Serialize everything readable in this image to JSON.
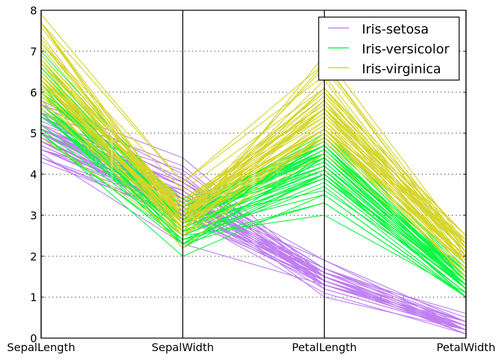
{
  "chart_data": {
    "type": "parallel_coordinates",
    "title": "",
    "xlabel": "",
    "ylabel": "",
    "axes": [
      "SepalLength",
      "SepalWidth",
      "PetalLength",
      "PetalWidth"
    ],
    "ylim": [
      0,
      8
    ],
    "yticks": [
      "0",
      "1",
      "2",
      "3",
      "4",
      "5",
      "6",
      "7",
      "8"
    ],
    "grid": true,
    "legend": {
      "position": "top-right",
      "entries": [
        "Iris-setosa",
        "Iris-versicolor",
        "Iris-virginica"
      ]
    },
    "colors": {
      "Iris-setosa": "#bf7ff0",
      "Iris-versicolor": "#0ef542",
      "Iris-virginica": "#d4d52a"
    },
    "series": [
      {
        "name": "Iris-setosa",
        "rows": [
          [
            5.1,
            3.5,
            1.4,
            0.2
          ],
          [
            4.9,
            3.0,
            1.4,
            0.2
          ],
          [
            4.7,
            3.2,
            1.3,
            0.2
          ],
          [
            4.6,
            3.1,
            1.5,
            0.2
          ],
          [
            5.0,
            3.6,
            1.4,
            0.2
          ],
          [
            5.4,
            3.9,
            1.7,
            0.4
          ],
          [
            4.6,
            3.4,
            1.4,
            0.3
          ],
          [
            5.0,
            3.4,
            1.5,
            0.2
          ],
          [
            4.4,
            2.9,
            1.4,
            0.2
          ],
          [
            4.9,
            3.1,
            1.5,
            0.1
          ],
          [
            5.4,
            3.7,
            1.5,
            0.2
          ],
          [
            4.8,
            3.4,
            1.6,
            0.2
          ],
          [
            4.8,
            3.0,
            1.4,
            0.1
          ],
          [
            4.3,
            3.0,
            1.1,
            0.1
          ],
          [
            5.8,
            4.0,
            1.2,
            0.2
          ],
          [
            5.7,
            4.4,
            1.5,
            0.4
          ],
          [
            5.4,
            3.9,
            1.3,
            0.4
          ],
          [
            5.1,
            3.5,
            1.4,
            0.3
          ],
          [
            5.7,
            3.8,
            1.7,
            0.3
          ],
          [
            5.1,
            3.8,
            1.5,
            0.3
          ],
          [
            5.4,
            3.4,
            1.7,
            0.2
          ],
          [
            5.1,
            3.7,
            1.5,
            0.4
          ],
          [
            4.6,
            3.6,
            1.0,
            0.2
          ],
          [
            5.1,
            3.3,
            1.7,
            0.5
          ],
          [
            4.8,
            3.4,
            1.9,
            0.2
          ],
          [
            5.0,
            3.0,
            1.6,
            0.2
          ],
          [
            5.0,
            3.4,
            1.6,
            0.4
          ],
          [
            5.2,
            3.5,
            1.5,
            0.2
          ],
          [
            5.2,
            3.4,
            1.4,
            0.2
          ],
          [
            4.7,
            3.2,
            1.6,
            0.2
          ],
          [
            4.8,
            3.1,
            1.6,
            0.2
          ],
          [
            5.4,
            3.4,
            1.5,
            0.4
          ],
          [
            5.2,
            4.1,
            1.5,
            0.1
          ],
          [
            5.5,
            4.2,
            1.4,
            0.2
          ],
          [
            4.9,
            3.1,
            1.5,
            0.1
          ],
          [
            5.0,
            3.2,
            1.2,
            0.2
          ],
          [
            5.5,
            3.5,
            1.3,
            0.2
          ],
          [
            4.9,
            3.1,
            1.5,
            0.1
          ],
          [
            4.4,
            3.0,
            1.3,
            0.2
          ],
          [
            5.1,
            3.4,
            1.5,
            0.2
          ],
          [
            5.0,
            3.5,
            1.3,
            0.3
          ],
          [
            4.5,
            2.3,
            1.3,
            0.3
          ],
          [
            4.4,
            3.2,
            1.3,
            0.2
          ],
          [
            5.0,
            3.5,
            1.6,
            0.6
          ],
          [
            5.1,
            3.8,
            1.9,
            0.4
          ],
          [
            4.8,
            3.0,
            1.4,
            0.3
          ],
          [
            5.1,
            3.8,
            1.6,
            0.2
          ],
          [
            4.6,
            3.2,
            1.4,
            0.2
          ],
          [
            5.3,
            3.7,
            1.5,
            0.2
          ],
          [
            5.0,
            3.3,
            1.4,
            0.2
          ]
        ]
      },
      {
        "name": "Iris-versicolor",
        "rows": [
          [
            7.0,
            3.2,
            4.7,
            1.4
          ],
          [
            6.4,
            3.2,
            4.5,
            1.5
          ],
          [
            6.9,
            3.1,
            4.9,
            1.5
          ],
          [
            5.5,
            2.3,
            4.0,
            1.3
          ],
          [
            6.5,
            2.8,
            4.6,
            1.5
          ],
          [
            5.7,
            2.8,
            4.5,
            1.3
          ],
          [
            6.3,
            3.3,
            4.7,
            1.6
          ],
          [
            4.9,
            2.4,
            3.3,
            1.0
          ],
          [
            6.6,
            2.9,
            4.6,
            1.3
          ],
          [
            5.2,
            2.7,
            3.9,
            1.4
          ],
          [
            5.0,
            2.0,
            3.5,
            1.0
          ],
          [
            5.9,
            3.0,
            4.2,
            1.5
          ],
          [
            6.0,
            2.2,
            4.0,
            1.0
          ],
          [
            6.1,
            2.9,
            4.7,
            1.4
          ],
          [
            5.6,
            2.9,
            3.6,
            1.3
          ],
          [
            6.7,
            3.1,
            4.4,
            1.4
          ],
          [
            5.6,
            3.0,
            4.5,
            1.5
          ],
          [
            5.8,
            2.7,
            4.1,
            1.0
          ],
          [
            6.2,
            2.2,
            4.5,
            1.5
          ],
          [
            5.6,
            2.5,
            3.9,
            1.1
          ],
          [
            5.9,
            3.2,
            4.8,
            1.8
          ],
          [
            6.1,
            2.8,
            4.0,
            1.3
          ],
          [
            6.3,
            2.5,
            4.9,
            1.5
          ],
          [
            6.1,
            2.8,
            4.7,
            1.2
          ],
          [
            6.4,
            2.9,
            4.3,
            1.3
          ],
          [
            6.6,
            3.0,
            4.4,
            1.4
          ],
          [
            6.8,
            2.8,
            4.8,
            1.4
          ],
          [
            6.7,
            3.0,
            5.0,
            1.7
          ],
          [
            6.0,
            2.9,
            4.5,
            1.5
          ],
          [
            5.7,
            2.6,
            3.5,
            1.0
          ],
          [
            5.5,
            2.4,
            3.8,
            1.1
          ],
          [
            5.5,
            2.4,
            3.7,
            1.0
          ],
          [
            5.8,
            2.7,
            3.9,
            1.2
          ],
          [
            6.0,
            2.7,
            5.1,
            1.6
          ],
          [
            5.4,
            3.0,
            4.5,
            1.5
          ],
          [
            6.0,
            3.4,
            4.5,
            1.6
          ],
          [
            6.7,
            3.1,
            4.7,
            1.5
          ],
          [
            6.3,
            2.3,
            4.4,
            1.3
          ],
          [
            5.6,
            3.0,
            4.1,
            1.3
          ],
          [
            5.5,
            2.5,
            4.0,
            1.3
          ],
          [
            5.5,
            2.6,
            4.4,
            1.2
          ],
          [
            6.1,
            3.0,
            4.6,
            1.4
          ],
          [
            5.8,
            2.6,
            4.0,
            1.2
          ],
          [
            5.0,
            2.3,
            3.3,
            1.0
          ],
          [
            5.6,
            2.7,
            4.2,
            1.3
          ],
          [
            5.7,
            3.0,
            4.2,
            1.2
          ],
          [
            5.7,
            2.9,
            4.2,
            1.3
          ],
          [
            6.2,
            2.9,
            4.3,
            1.3
          ],
          [
            5.1,
            2.5,
            3.0,
            1.1
          ],
          [
            5.7,
            2.8,
            4.1,
            1.3
          ]
        ]
      },
      {
        "name": "Iris-virginica",
        "rows": [
          [
            6.3,
            3.3,
            6.0,
            2.5
          ],
          [
            5.8,
            2.7,
            5.1,
            1.9
          ],
          [
            7.1,
            3.0,
            5.9,
            2.1
          ],
          [
            6.3,
            2.9,
            5.6,
            1.8
          ],
          [
            6.5,
            3.0,
            5.8,
            2.2
          ],
          [
            7.6,
            3.0,
            6.6,
            2.1
          ],
          [
            4.9,
            2.5,
            4.5,
            1.7
          ],
          [
            7.3,
            2.9,
            6.3,
            1.8
          ],
          [
            6.7,
            2.5,
            5.8,
            1.8
          ],
          [
            7.2,
            3.6,
            6.1,
            2.5
          ],
          [
            6.5,
            3.2,
            5.1,
            2.0
          ],
          [
            6.4,
            2.7,
            5.3,
            1.9
          ],
          [
            6.8,
            3.0,
            5.5,
            2.1
          ],
          [
            5.7,
            2.5,
            5.0,
            2.0
          ],
          [
            5.8,
            2.8,
            5.1,
            2.4
          ],
          [
            6.4,
            3.2,
            5.3,
            2.3
          ],
          [
            6.5,
            3.0,
            5.5,
            1.8
          ],
          [
            7.7,
            3.8,
            6.7,
            2.2
          ],
          [
            7.7,
            2.6,
            6.9,
            2.3
          ],
          [
            6.0,
            2.2,
            5.0,
            1.5
          ],
          [
            6.9,
            3.2,
            5.7,
            2.3
          ],
          [
            5.6,
            2.8,
            4.9,
            2.0
          ],
          [
            7.7,
            2.8,
            6.7,
            2.0
          ],
          [
            6.3,
            2.7,
            4.9,
            1.8
          ],
          [
            6.7,
            3.3,
            5.7,
            2.1
          ],
          [
            7.2,
            3.2,
            6.0,
            1.8
          ],
          [
            6.2,
            2.8,
            4.8,
            1.8
          ],
          [
            6.1,
            3.0,
            4.9,
            1.8
          ],
          [
            6.4,
            2.8,
            5.6,
            2.1
          ],
          [
            7.2,
            3.0,
            5.8,
            1.6
          ],
          [
            7.4,
            2.8,
            6.1,
            1.9
          ],
          [
            7.9,
            3.8,
            6.4,
            2.0
          ],
          [
            6.4,
            2.8,
            5.6,
            2.2
          ],
          [
            6.3,
            2.8,
            5.1,
            1.5
          ],
          [
            6.1,
            2.6,
            5.6,
            1.4
          ],
          [
            7.7,
            3.0,
            6.1,
            2.3
          ],
          [
            6.3,
            3.4,
            5.6,
            2.4
          ],
          [
            6.4,
            3.1,
            5.5,
            1.8
          ],
          [
            6.0,
            3.0,
            4.8,
            1.8
          ],
          [
            6.9,
            3.1,
            5.4,
            2.1
          ],
          [
            6.7,
            3.1,
            5.6,
            2.4
          ],
          [
            6.9,
            3.1,
            5.1,
            2.3
          ],
          [
            5.8,
            2.7,
            5.1,
            1.9
          ],
          [
            6.8,
            3.2,
            5.9,
            2.3
          ],
          [
            6.7,
            3.3,
            5.7,
            2.5
          ],
          [
            6.7,
            3.0,
            5.2,
            2.3
          ],
          [
            6.3,
            2.5,
            5.0,
            1.9
          ],
          [
            6.5,
            3.0,
            5.2,
            2.0
          ],
          [
            6.2,
            3.4,
            5.4,
            2.3
          ],
          [
            5.9,
            3.0,
            5.1,
            1.8
          ]
        ]
      }
    ]
  }
}
